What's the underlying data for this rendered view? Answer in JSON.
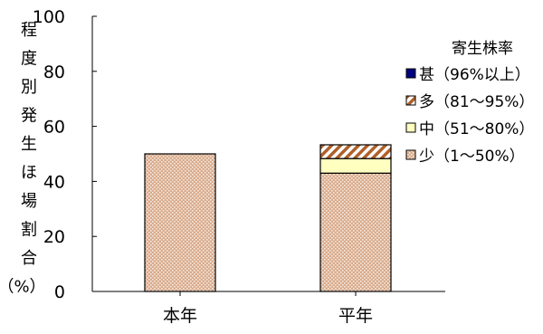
{
  "chart_data": {
    "type": "bar",
    "stacked": true,
    "categories": [
      "本年",
      "平年"
    ],
    "ylabel": "程度別発生ほ場割合（%）",
    "ylim": [
      0,
      100
    ],
    "yticks": [
      0,
      20,
      40,
      60,
      80,
      100
    ],
    "grid": false,
    "legend": {
      "title": "寄生株率",
      "position": "right"
    },
    "series": [
      {
        "name": "少（1～50%）",
        "values": [
          50.0,
          43.0
        ],
        "color": "#d8a888",
        "pattern": "dots"
      },
      {
        "name": "中（51～80%）",
        "values": [
          0,
          5.3
        ],
        "color": "#ffffc0",
        "pattern": "solid"
      },
      {
        "name": "多（81～95%）",
        "values": [
          0,
          5.0
        ],
        "color": "#b06028",
        "pattern": "stripes"
      },
      {
        "name": "甚（96%以上）",
        "values": [
          0,
          0
        ],
        "color": "#000080",
        "pattern": "solid"
      }
    ]
  }
}
